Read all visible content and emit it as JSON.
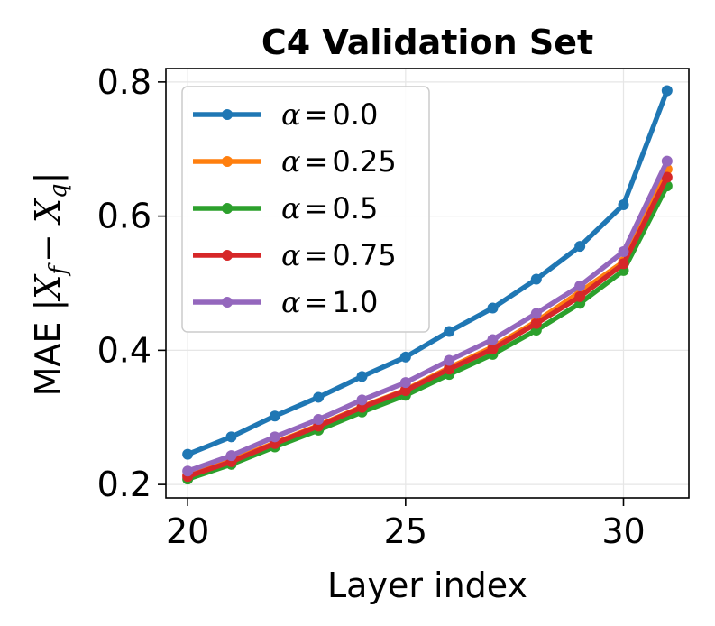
{
  "chart_data": {
    "type": "line",
    "title": "C4 Validation Set",
    "xlabel": "Layer index",
    "ylabel": "MAE |X_f − X_q|",
    "xlim": [
      19.5,
      31.5
    ],
    "ylim": [
      0.18,
      0.82
    ],
    "x_ticks": [
      20,
      25,
      30
    ],
    "x_tick_labels": [
      "20",
      "25",
      "30"
    ],
    "y_ticks": [
      0.2,
      0.4,
      0.6,
      0.8
    ],
    "y_tick_labels": [
      "0.2",
      "0.4",
      "0.6",
      "0.8"
    ],
    "grid": true,
    "legend_position": "upper-left",
    "x": [
      20,
      21,
      22,
      23,
      24,
      25,
      26,
      27,
      28,
      29,
      30,
      31
    ],
    "series": [
      {
        "name": "α = 0.0",
        "symbol": "α",
        "equals": "=",
        "value_text": "0.0",
        "color": "#1f77b4",
        "values": [
          0.245,
          0.271,
          0.302,
          0.33,
          0.361,
          0.39,
          0.428,
          0.463,
          0.506,
          0.555,
          0.617,
          0.787
        ]
      },
      {
        "name": "α = 0.25",
        "symbol": "α",
        "equals": "=",
        "value_text": "0.25",
        "color": "#ff7f0e",
        "values": [
          0.214,
          0.236,
          0.262,
          0.288,
          0.316,
          0.341,
          0.374,
          0.405,
          0.443,
          0.487,
          0.532,
          0.67
        ]
      },
      {
        "name": "α = 0.5",
        "symbol": "α",
        "equals": "=",
        "value_text": "0.5",
        "color": "#2ca02c",
        "values": [
          0.208,
          0.23,
          0.256,
          0.281,
          0.308,
          0.333,
          0.364,
          0.394,
          0.43,
          0.47,
          0.519,
          0.645
        ]
      },
      {
        "name": "α = 0.75",
        "symbol": "α",
        "equals": "=",
        "value_text": "0.75",
        "color": "#d62728",
        "values": [
          0.212,
          0.234,
          0.261,
          0.287,
          0.315,
          0.34,
          0.372,
          0.402,
          0.44,
          0.48,
          0.529,
          0.658
        ]
      },
      {
        "name": "α = 1.0",
        "symbol": "α",
        "equals": "=",
        "value_text": "1.0",
        "color": "#9467bd",
        "values": [
          0.22,
          0.243,
          0.271,
          0.297,
          0.326,
          0.352,
          0.385,
          0.416,
          0.455,
          0.496,
          0.547,
          0.682
        ]
      }
    ]
  }
}
